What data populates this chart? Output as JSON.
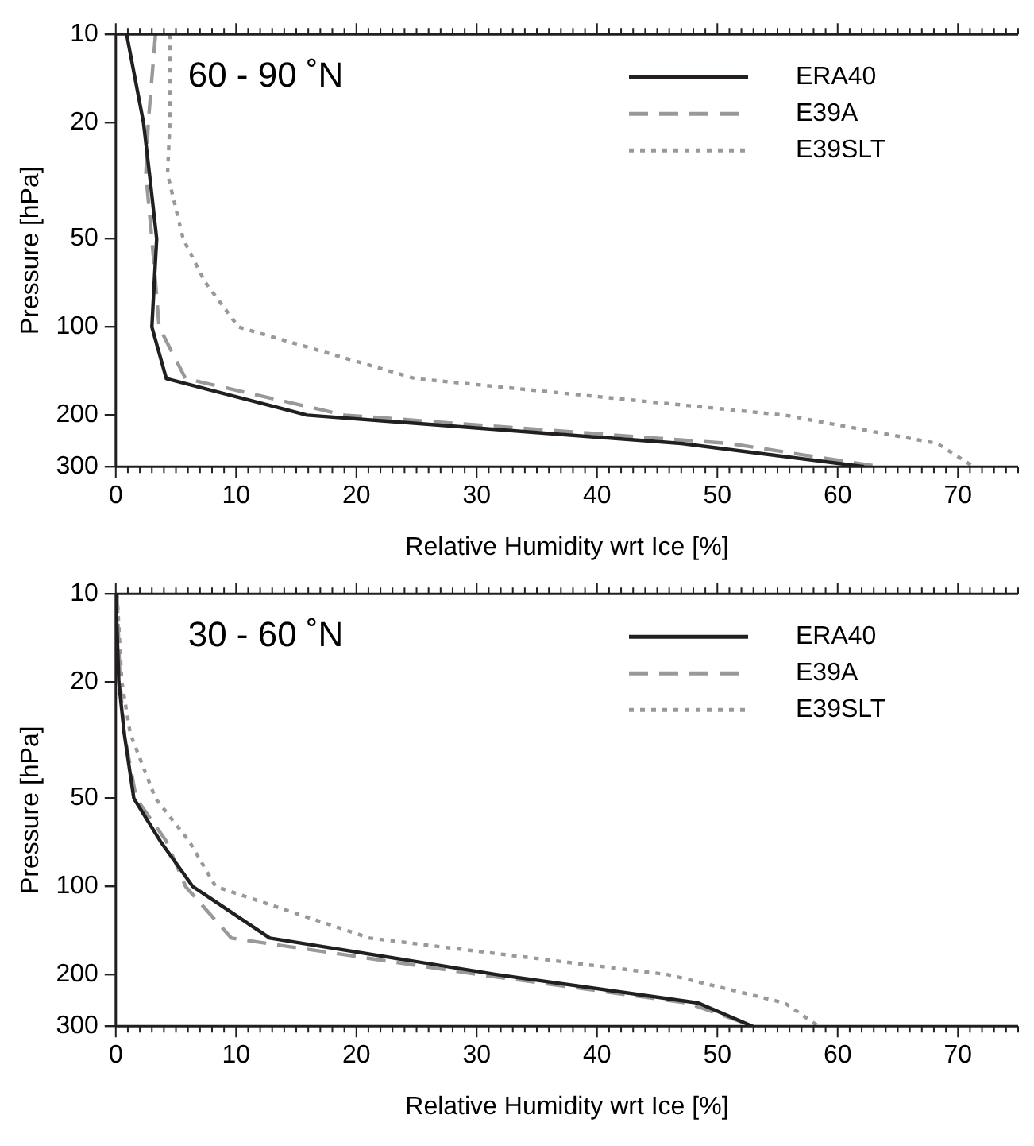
{
  "chart_data": [
    {
      "type": "line",
      "title": "60 - 90 ˚N",
      "xlabel": "Relative Humidity wrt Ice [%]",
      "ylabel": "Pressure [hPa]",
      "log": "y",
      "xlim": [
        0,
        75
      ],
      "xticks": [
        0,
        10,
        20,
        30,
        40,
        50,
        60,
        70
      ],
      "ylim": [
        300,
        10
      ],
      "yticks": [
        10,
        20,
        50,
        100,
        200,
        300
      ],
      "legend": "top right",
      "grid": false,
      "marker": "none",
      "series": [
        {
          "name": "ERA40",
          "color": "#231f20",
          "line_style": "solid",
          "x": [
            0.9,
            2.3,
            2.8,
            3.4,
            3.2,
            3.0,
            4.2,
            15.9,
            47,
            62.2
          ],
          "values": [
            10,
            20,
            30,
            50,
            70,
            100,
            150,
            200,
            250,
            300
          ]
        },
        {
          "name": "E39A",
          "color": "#999999",
          "line_style": "dashed",
          "x": [
            3.3,
            2.7,
            2.5,
            3.0,
            3.3,
            3.6,
            5.8,
            19,
            51,
            63.5
          ],
          "values": [
            10,
            20,
            30,
            50,
            70,
            100,
            150,
            200,
            250,
            300
          ]
        },
        {
          "name": "E39SLT",
          "color": "#999999",
          "line_style": "dotted",
          "x": [
            4.5,
            4.5,
            4.3,
            5.6,
            7.4,
            10.2,
            24.9,
            55.6,
            68.3,
            71.3
          ],
          "values": [
            10,
            20,
            30,
            50,
            70,
            100,
            150,
            200,
            250,
            300
          ]
        }
      ]
    },
    {
      "type": "line",
      "title": "30 - 60 ˚N",
      "xlabel": "Relative Humidity wrt Ice [%]",
      "ylabel": "Pressure [hPa]",
      "log": "y",
      "xlim": [
        0,
        75
      ],
      "xticks": [
        0,
        10,
        20,
        30,
        40,
        50,
        60,
        70
      ],
      "ylim": [
        300,
        10
      ],
      "yticks": [
        10,
        20,
        50,
        100,
        200,
        300
      ],
      "legend": "top right",
      "grid": false,
      "marker": "none",
      "series": [
        {
          "name": "ERA40",
          "color": "#231f20",
          "line_style": "solid",
          "x": [
            0,
            0.25,
            0.7,
            1.5,
            3.7,
            6.4,
            12.8,
            31.7,
            48.4,
            52.9
          ],
          "values": [
            10,
            20,
            30,
            50,
            70,
            100,
            150,
            200,
            250,
            300
          ]
        },
        {
          "name": "E39A",
          "color": "#999999",
          "line_style": "dashed",
          "x": [
            0.1,
            0.35,
            0.7,
            1.7,
            4.2,
            5.8,
            9.6,
            30.2,
            47.5,
            53
          ],
          "values": [
            10,
            20,
            30,
            50,
            70,
            100,
            150,
            200,
            250,
            300
          ]
        },
        {
          "name": "E39SLT",
          "color": "#999999",
          "line_style": "dotted",
          "x": [
            0.1,
            0.5,
            1.2,
            3.3,
            6.1,
            8.3,
            21.1,
            45.9,
            55.6,
            58.4
          ],
          "values": [
            10,
            20,
            30,
            50,
            70,
            100,
            150,
            200,
            250,
            300
          ]
        }
      ]
    }
  ]
}
